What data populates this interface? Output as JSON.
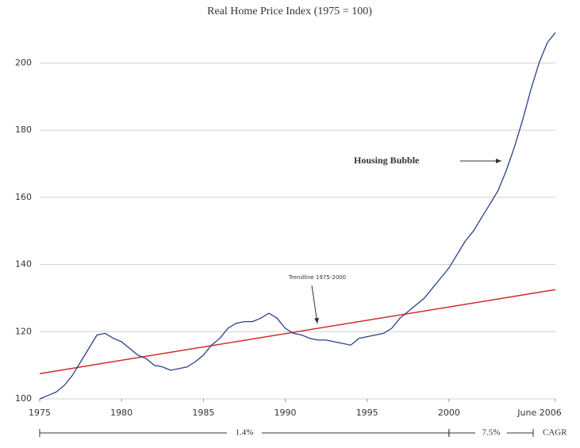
{
  "chart_data": {
    "type": "line",
    "title": "Real Home Price Index (1975 = 100)",
    "x": [
      1975,
      1975.5,
      1976,
      1976.5,
      1977,
      1977.5,
      1978,
      1978.5,
      1979,
      1979.5,
      1980,
      1980.5,
      1981,
      1981.5,
      1982,
      1982.5,
      1983,
      1983.5,
      1984,
      1984.5,
      1985,
      1985.5,
      1986,
      1986.5,
      1987,
      1987.5,
      1988,
      1988.5,
      1989,
      1989.5,
      1990,
      1990.5,
      1991,
      1991.5,
      1992,
      1992.5,
      1993,
      1993.5,
      1994,
      1994.5,
      1995,
      1995.5,
      1996,
      1996.5,
      1997,
      1997.5,
      1998,
      1998.5,
      1999,
      1999.5,
      2000,
      2000.5,
      2001,
      2001.5,
      2002,
      2002.5,
      2003,
      2003.5,
      2004,
      2004.5,
      2005,
      2005.5,
      2006,
      2006.5
    ],
    "series": [
      {
        "color": "#2b3f8c",
        "values": [
          100,
          101,
          102,
          104,
          107,
          111,
          115,
          119,
          119.5,
          118,
          117,
          115,
          113,
          112,
          110,
          109.5,
          108.5,
          109,
          109.5,
          111,
          113,
          116,
          118,
          121,
          122.5,
          123,
          123,
          124,
          125.5,
          124,
          121,
          119.5,
          119,
          118,
          117.5,
          117.5,
          117,
          116.5,
          116,
          118,
          118.5,
          119,
          119.5,
          121,
          124,
          126,
          128,
          130,
          133,
          136,
          139,
          143,
          147,
          150,
          154,
          158,
          162,
          168,
          175,
          183,
          192,
          200,
          206,
          209
        ]
      }
    ],
    "trendline": {
      "color": "#d42a2a",
      "x": [
        1975,
        2006.5
      ],
      "values": [
        107.5,
        132.5
      ]
    },
    "annotations": {
      "bubble": "Housing Bubble",
      "trend": "Trendline 1975-2000",
      "cagr1": "1.4%",
      "cagr2": "7.5%",
      "cagr": "CAGR"
    },
    "xlim": [
      1975,
      2006.5
    ],
    "xticks": [
      1975,
      1980,
      1985,
      1990,
      1995,
      2000,
      {
        "value": 2006.5,
        "label": "June 2006"
      }
    ],
    "ylim": [
      100,
      210
    ],
    "yticks": [
      100,
      120,
      140,
      160,
      180,
      200
    ],
    "grid": true
  }
}
